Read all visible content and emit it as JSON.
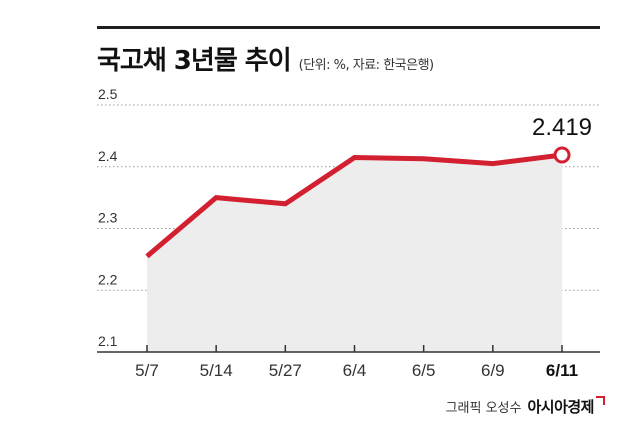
{
  "title": "국고채 3년물 추이",
  "subtitle": "(단위: %, 자료: 한국은행)",
  "credit": {
    "graphic": "그래픽 오성수",
    "brand": "아시아경제"
  },
  "colors": {
    "line": "#d32030",
    "area": "#ededed",
    "grid": "#9a9a9a",
    "axis": "#333333"
  },
  "chart_data": {
    "type": "line",
    "title": "국고채 3년물 추이",
    "xlabel": "",
    "ylabel": "",
    "categories": [
      "5/7",
      "5/14",
      "5/27",
      "6/4",
      "6/5",
      "6/9",
      "6/11"
    ],
    "series": [
      {
        "values": [
          2.255,
          2.35,
          2.34,
          2.415,
          2.413,
          2.405,
          2.419
        ]
      }
    ],
    "yticks": [
      "2.1",
      "2.2",
      "2.3",
      "2.4",
      "2.5"
    ],
    "ylim": [
      2.1,
      2.5
    ],
    "grid": true,
    "grid_style": "dotted",
    "area_fill": true,
    "annotation": {
      "category": "6/11",
      "label": "2.419"
    }
  }
}
